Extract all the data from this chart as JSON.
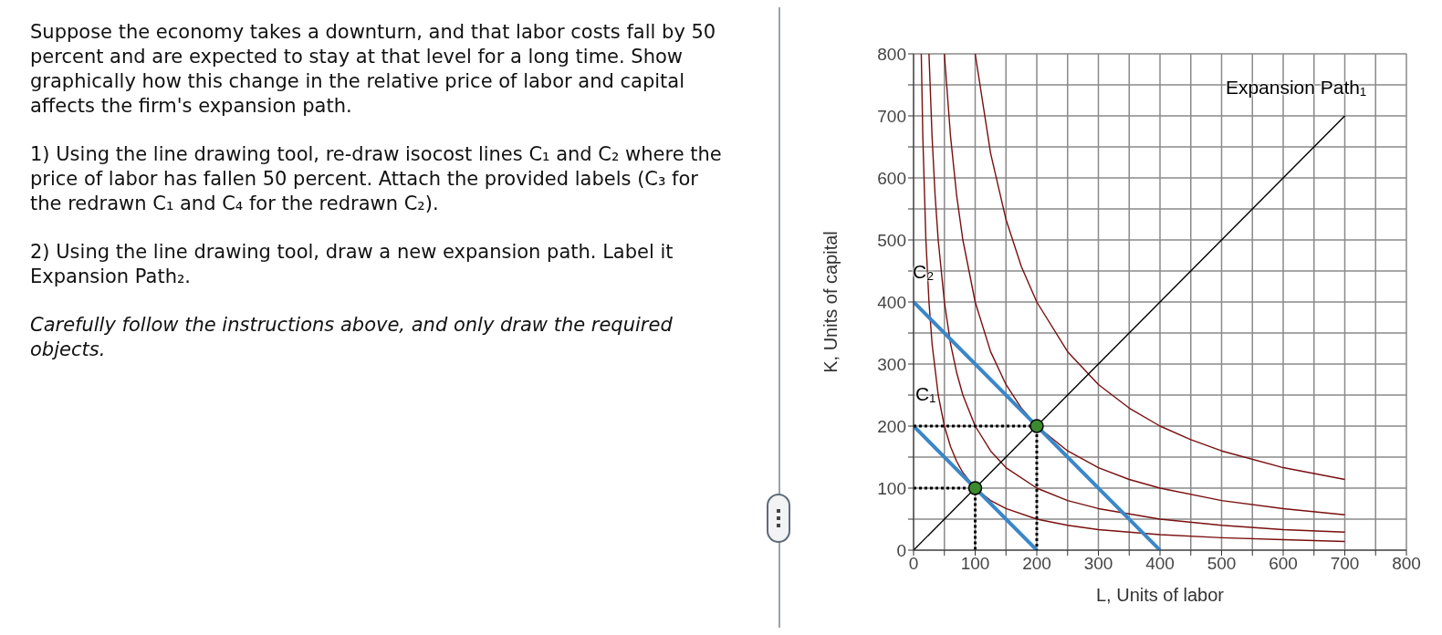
{
  "chart_data": {
    "type": "line",
    "xlabel": "L, Units of labor",
    "ylabel": "K, Units of capital",
    "xlim": [
      0,
      800
    ],
    "ylim": [
      0,
      800
    ],
    "xticks": [
      0,
      {
        "value": 50,
        "label": null
      },
      100,
      {
        "value": 150,
        "label": null
      },
      200,
      {
        "value": 250,
        "label": null
      },
      300,
      {
        "value": 350,
        "label": null
      },
      400,
      {
        "value": 450,
        "label": null
      },
      500,
      {
        "value": 550,
        "label": null
      },
      600,
      {
        "value": 650,
        "label": null
      },
      700,
      {
        "value": 750,
        "label": null
      },
      800
    ],
    "yticks": [
      0,
      {
        "value": 50,
        "label": null
      },
      100,
      {
        "value": 150,
        "label": null
      },
      200,
      {
        "value": 250,
        "label": null
      },
      300,
      {
        "value": 350,
        "label": null
      },
      400,
      {
        "value": 450,
        "label": null
      },
      500,
      {
        "value": 550,
        "label": null
      },
      600,
      {
        "value": 650,
        "label": null
      },
      700,
      {
        "value": 750,
        "label": null
      },
      800
    ],
    "grid": true,
    "marker": "none",
    "line_style": "solid",
    "series": [
      {
        "color": "#7a0f0f",
        "x": [
          12.5,
          15,
          20,
          25,
          30,
          40,
          50,
          60,
          70,
          80,
          100,
          125,
          150,
          200,
          250,
          300,
          400,
          500,
          600,
          700
        ],
        "values": [
          800,
          667,
          500,
          400,
          333,
          250,
          200,
          167,
          143,
          125,
          100,
          80,
          67,
          50,
          40,
          33,
          25,
          20,
          17,
          14
        ]
      },
      {
        "color": "#7a0f0f",
        "x": [
          25,
          30,
          35,
          40,
          50,
          60,
          70,
          80,
          100,
          125,
          150,
          200,
          250,
          300,
          400,
          500,
          600,
          700
        ],
        "values": [
          800,
          667,
          571,
          500,
          400,
          333,
          286,
          250,
          200,
          160,
          133,
          100,
          80,
          67,
          50,
          40,
          33,
          29
        ]
      },
      {
        "color": "#7a0f0f",
        "x": [
          50,
          60,
          70,
          80,
          100,
          125,
          150,
          175,
          200,
          250,
          300,
          350,
          400,
          500,
          600,
          700
        ],
        "values": [
          800,
          667,
          571,
          500,
          400,
          320,
          267,
          229,
          200,
          160,
          133,
          114,
          100,
          80,
          67,
          57
        ]
      },
      {
        "color": "#7a0f0f",
        "x": [
          100,
          125,
          150,
          175,
          200,
          250,
          300,
          350,
          400,
          450,
          500,
          600,
          700
        ],
        "values": [
          800,
          640,
          533,
          457,
          400,
          320,
          267,
          229,
          200,
          178,
          160,
          133,
          114
        ]
      },
      {
        "color": "#3a87c8",
        "x": [
          0,
          200
        ],
        "values": [
          200,
          0
        ]
      },
      {
        "color": "#3a87c8",
        "x": [
          0,
          400
        ],
        "values": [
          400,
          0
        ]
      },
      {
        "color": "#000000",
        "x": [
          0,
          700
        ],
        "values": [
          0,
          700
        ]
      },
      {
        "color": "#000000",
        "line_style": "dotted",
        "x": [
          0,
          100,
          100
        ],
        "values": [
          100,
          100,
          0
        ]
      },
      {
        "color": "#000000",
        "line_style": "dotted",
        "x": [
          0,
          200,
          200
        ],
        "values": [
          200,
          200,
          0
        ]
      },
      {
        "type": "scatter",
        "marker": "circle",
        "color": "#3b8a2e",
        "x": [
          100,
          200
        ],
        "values": [
          100,
          200
        ]
      }
    ],
    "annotations": [
      "Suppose the economy takes a downturn, and that labor costs fall by 50 percent and are expected to stay at that level for a long time. Show graphically how this change in the relative price of labor and capital affects the firm's expansion path.",
      "1) Using the line drawing tool, re-draw isocost lines C₁ and C₂ where the price of labor has fallen 50 percent. Attach the provided labels (C₃ for the redrawn C₁ and C₄ for the redrawn C₂).",
      "2) Using the line drawing tool, draw a new expansion path. Label it Expansion Path₂.",
      "Carefully follow the instructions above, and only draw the required objects.",
      "C₁",
      "C₂",
      "Expansion Path₁"
    ]
  }
}
